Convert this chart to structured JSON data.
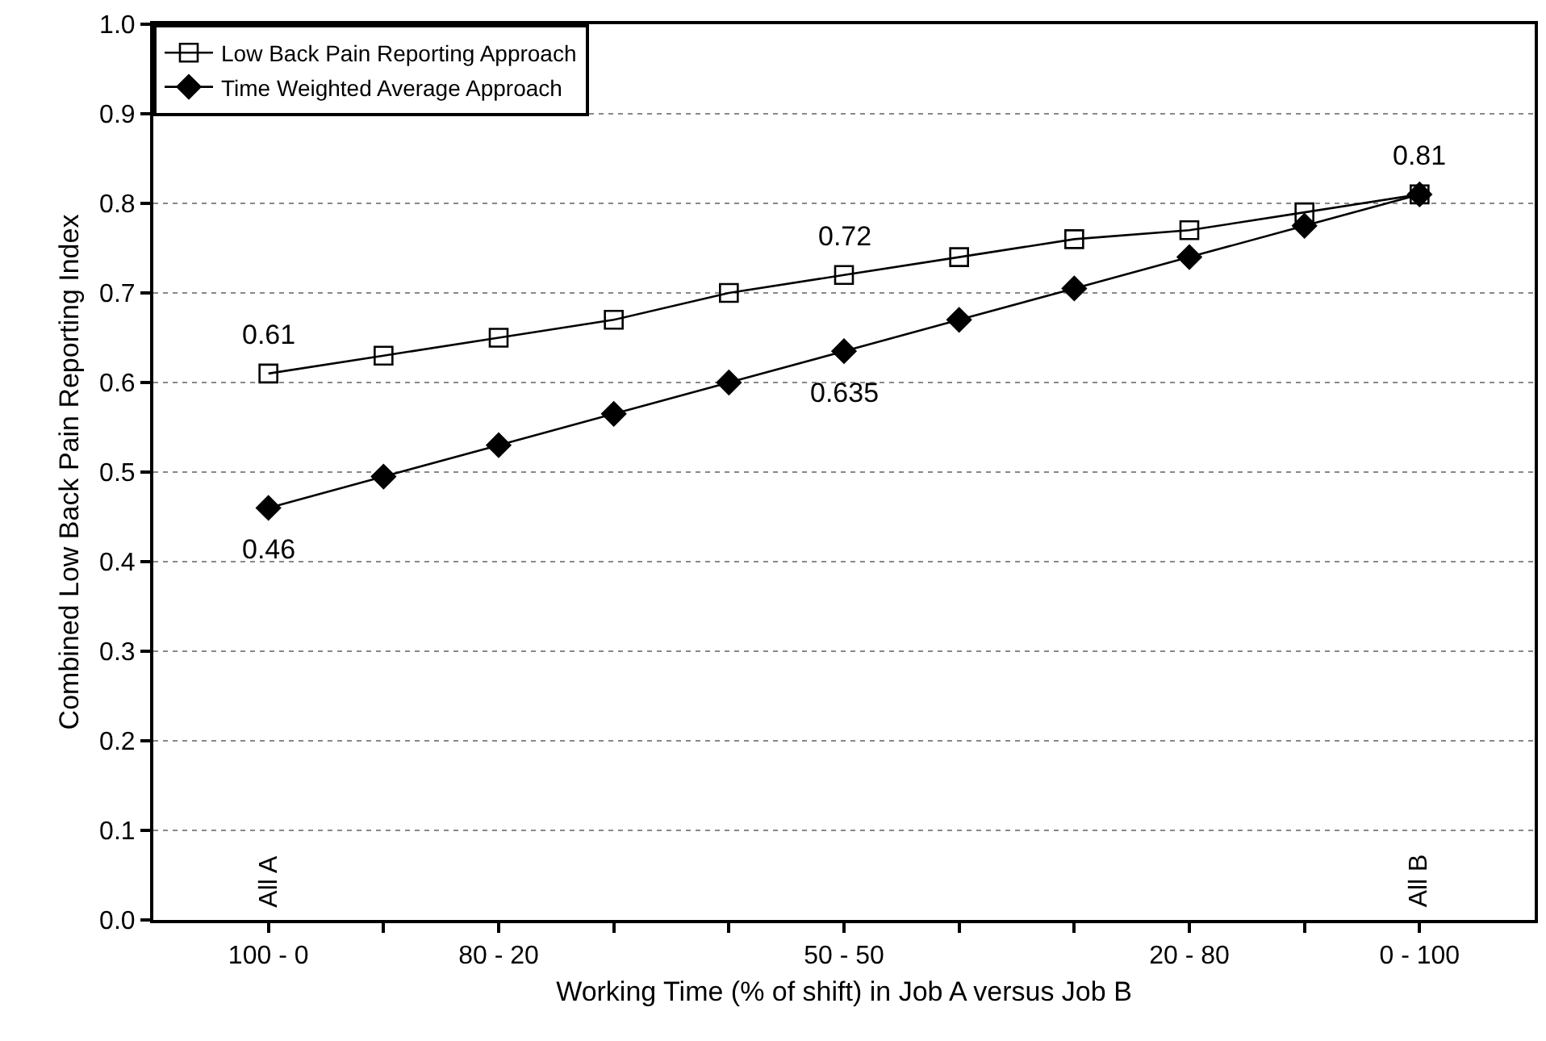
{
  "chart_data": {
    "type": "line",
    "xlabel": "Working Time (% of shift) in Job A versus Job B",
    "ylabel": "Combined Low Back Pain Reporting Index",
    "categories": [
      "100 - 0",
      null,
      "80 - 20",
      null,
      null,
      "50 - 50",
      null,
      null,
      "20 - 80",
      null,
      "0 - 100"
    ],
    "ylim": [
      0,
      1
    ],
    "yticks": [
      {
        "value": 0,
        "label": "0.0"
      },
      {
        "value": 0.1,
        "label": "0.1"
      },
      {
        "value": 0.2,
        "label": "0.2"
      },
      {
        "value": 0.3,
        "label": "0.3"
      },
      {
        "value": 0.4,
        "label": "0.4"
      },
      {
        "value": 0.5,
        "label": "0.5"
      },
      {
        "value": 0.6,
        "label": "0.6"
      },
      {
        "value": 0.7,
        "label": "0.7"
      },
      {
        "value": 0.8,
        "label": "0.8"
      },
      {
        "value": 0.9,
        "label": "0.9"
      },
      {
        "value": 1,
        "label": "1.0"
      }
    ],
    "grid": "y",
    "legend": "top left",
    "series": [
      {
        "name": "Low Back Pain Reporting Approach",
        "color": "#000000",
        "marker": "square",
        "values": [
          0.61,
          0.63,
          0.65,
          0.67,
          0.7,
          0.72,
          0.74,
          0.76,
          0.77,
          0.79,
          0.81
        ]
      },
      {
        "name": "Time Weighted Average Approach",
        "color": "#000000",
        "marker": "diamond",
        "values": [
          0.46,
          0.495,
          0.53,
          0.565,
          0.6,
          0.635,
          0.67,
          0.705,
          0.74,
          0.775,
          0.81
        ]
      }
    ],
    "annotations": [
      {
        "text": "0.61",
        "x": "100 - 0",
        "y": 0.61
      },
      {
        "text": "0.72",
        "x": "50 - 50",
        "y": 0.72
      },
      {
        "text": "0.81",
        "x": "0 - 100",
        "y": 0.81
      },
      {
        "text": "0.635",
        "x": "50 - 50",
        "y": 0.635
      },
      {
        "text": "0.46",
        "x": "100 - 0",
        "y": 0.46
      },
      "All A",
      "All B"
    ]
  }
}
